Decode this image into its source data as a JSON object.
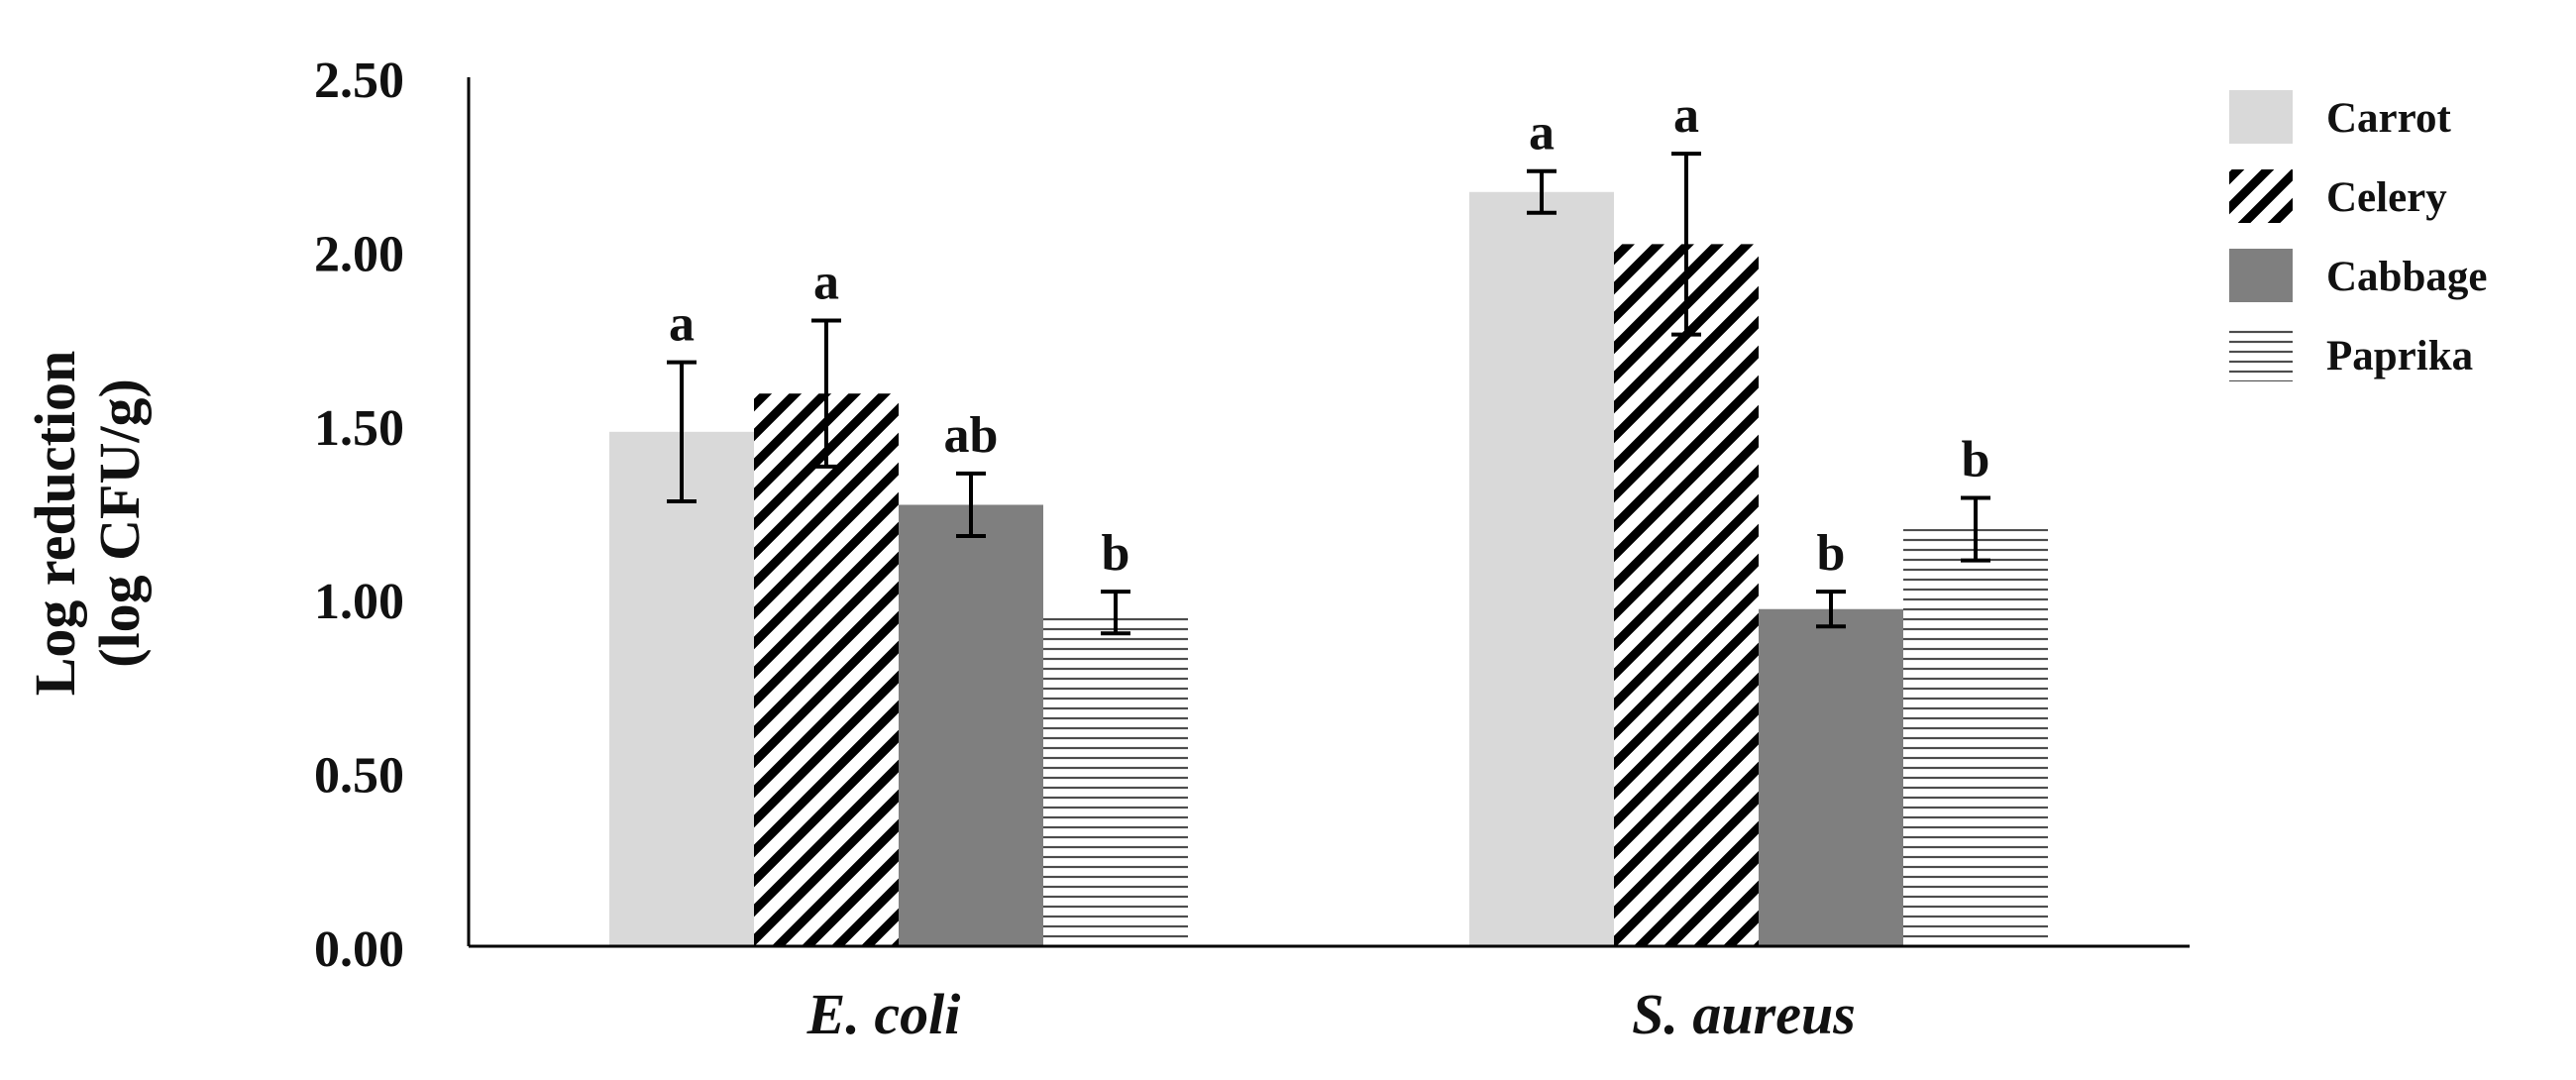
{
  "chart_data": {
    "type": "bar",
    "categories": [
      "E. coli",
      "S. aureus"
    ],
    "ylabel_line1": "Log reduction",
    "ylabel_line2": "(log CFU/g)",
    "xlabel": "",
    "ylim": [
      0,
      2.5
    ],
    "y_ticks": [
      "0.00",
      "0.50",
      "1.00",
      "1.50",
      "2.00",
      "2.50"
    ],
    "grid": false,
    "legend_position": "right",
    "series": [
      {
        "name": "Carrot",
        "pattern": "solid-light",
        "color": "#d9d9d9",
        "values": [
          1.48,
          2.17
        ],
        "errors": [
          0.2,
          0.06
        ],
        "letters": [
          "a",
          "a"
        ]
      },
      {
        "name": "Celery",
        "pattern": "diagonal-stripes",
        "color": "#000000",
        "values": [
          1.59,
          2.02
        ],
        "errors": [
          0.21,
          0.26
        ],
        "letters": [
          "a",
          "a"
        ]
      },
      {
        "name": "Cabbage",
        "pattern": "solid-dark",
        "color": "#7f7f7f",
        "values": [
          1.27,
          0.97
        ],
        "errors": [
          0.09,
          0.05
        ],
        "letters": [
          "ab",
          "b"
        ]
      },
      {
        "name": "Paprika",
        "pattern": "horizontal-stripes",
        "color": "#000000",
        "values": [
          0.96,
          1.2
        ],
        "errors": [
          0.06,
          0.09
        ],
        "letters": [
          "b",
          "b"
        ]
      }
    ]
  }
}
